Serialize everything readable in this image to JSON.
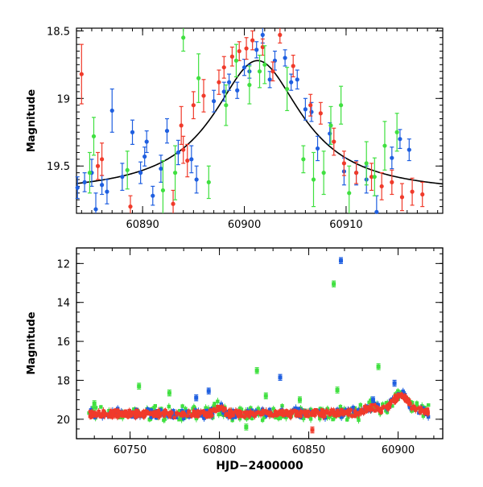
{
  "colors": {
    "blue": "#1f5fe0",
    "red": "#f03a2a",
    "green": "#40e040",
    "axis": "#000000",
    "model": "#000000"
  },
  "chart_data": [
    {
      "type": "scatter",
      "panel": "top",
      "xlabel": "",
      "ylabel": "Magnitude",
      "xlim": [
        60883.5,
        60919.5
      ],
      "ylim": [
        19.85,
        18.48
      ],
      "y_inverted": true,
      "x_ticks": [
        60890,
        60900,
        60910
      ],
      "x_tick_labels": [
        "60890",
        "60900",
        "60910"
      ],
      "y_ticks": [
        18.5,
        19,
        19.5
      ],
      "y_tick_labels": [
        "18.5",
        "19",
        "19.5"
      ],
      "model_curve": {
        "type": "lorentzian",
        "peak_time": 60901.3,
        "peak_mag": 18.72,
        "base_mag": 19.71,
        "width_days": 5.3
      },
      "series": [
        {
          "color": "blue",
          "points": [
            [
              60883.6,
              19.66,
              0.08
            ],
            [
              60884.3,
              19.62,
              0.07
            ],
            [
              60885.0,
              19.55,
              0.1
            ],
            [
              60885.4,
              19.82,
              0.12
            ],
            [
              60886.0,
              19.64,
              0.07
            ],
            [
              60886.5,
              19.69,
              0.09
            ],
            [
              60887.0,
              19.09,
              0.16
            ],
            [
              60888.0,
              19.58,
              0.1
            ],
            [
              60889.0,
              19.25,
              0.09
            ],
            [
              60889.8,
              19.55,
              0.08
            ],
            [
              60890.2,
              19.43,
              0.07
            ],
            [
              60890.4,
              19.32,
              0.08
            ],
            [
              60891.0,
              19.72,
              0.07
            ],
            [
              60891.8,
              19.52,
              0.1
            ],
            [
              60892.4,
              19.24,
              0.09
            ],
            [
              60893.5,
              19.4,
              0.09
            ],
            [
              60894.8,
              19.45,
              0.1
            ],
            [
              60895.3,
              19.6,
              0.1
            ],
            [
              60897.0,
              19.02,
              0.08
            ],
            [
              60898.0,
              18.95,
              0.07
            ],
            [
              60898.5,
              18.88,
              0.06
            ],
            [
              60899.3,
              18.94,
              0.06
            ],
            [
              60900.0,
              18.77,
              0.06
            ],
            [
              60900.5,
              18.8,
              0.05
            ],
            [
              60901.2,
              18.64,
              0.06
            ],
            [
              60901.8,
              18.53,
              0.06
            ],
            [
              60902.5,
              18.86,
              0.06
            ],
            [
              60903.0,
              18.72,
              0.07
            ],
            [
              60904.0,
              18.7,
              0.06
            ],
            [
              60904.6,
              18.88,
              0.06
            ],
            [
              60905.2,
              18.86,
              0.07
            ],
            [
              60906.0,
              19.08,
              0.08
            ],
            [
              60906.6,
              19.1,
              0.07
            ],
            [
              60907.2,
              19.37,
              0.09
            ],
            [
              60908.4,
              19.26,
              0.08
            ],
            [
              60909.8,
              19.54,
              0.1
            ],
            [
              60911.0,
              19.55,
              0.09
            ],
            [
              60912.0,
              19.6,
              0.1
            ],
            [
              60913.0,
              19.84,
              0.12
            ],
            [
              60914.5,
              19.44,
              0.08
            ],
            [
              60915.3,
              19.3,
              0.07
            ],
            [
              60916.2,
              19.38,
              0.08
            ]
          ]
        },
        {
          "color": "red",
          "points": [
            [
              60884.0,
              18.82,
              0.22
            ],
            [
              60885.6,
              19.5,
              0.1
            ],
            [
              60886.0,
              19.45,
              0.12
            ],
            [
              60888.8,
              19.8,
              0.08
            ],
            [
              60893.0,
              19.78,
              0.1
            ],
            [
              60893.8,
              19.2,
              0.14
            ],
            [
              60894.0,
              19.38,
              0.1
            ],
            [
              60894.4,
              19.46,
              0.12
            ],
            [
              60895.0,
              19.05,
              0.1
            ],
            [
              60896.0,
              18.98,
              0.12
            ],
            [
              60897.5,
              18.88,
              0.09
            ],
            [
              60898.0,
              18.77,
              0.08
            ],
            [
              60898.8,
              18.69,
              0.07
            ],
            [
              60899.5,
              18.65,
              0.07
            ],
            [
              60900.2,
              18.63,
              0.08
            ],
            [
              60900.8,
              18.57,
              0.07
            ],
            [
              60901.8,
              18.62,
              0.06
            ],
            [
              60902.8,
              18.8,
              0.07
            ],
            [
              60903.5,
              18.53,
              0.06
            ],
            [
              60904.8,
              18.76,
              0.08
            ],
            [
              60906.5,
              19.05,
              0.08
            ],
            [
              60907.5,
              19.11,
              0.08
            ],
            [
              60908.8,
              19.32,
              0.1
            ],
            [
              60909.8,
              19.48,
              0.09
            ],
            [
              60911.0,
              19.55,
              0.08
            ],
            [
              60912.5,
              19.58,
              0.1
            ],
            [
              60913.5,
              19.65,
              0.1
            ],
            [
              60914.5,
              19.62,
              0.09
            ],
            [
              60915.5,
              19.73,
              0.1
            ],
            [
              60916.5,
              19.69,
              0.1
            ],
            [
              60917.5,
              19.71,
              0.09
            ]
          ]
        },
        {
          "color": "green",
          "points": [
            [
              60884.8,
              19.55,
              0.15
            ],
            [
              60885.2,
              19.28,
              0.14
            ],
            [
              60888.5,
              19.53,
              0.14
            ],
            [
              60892.0,
              19.68,
              0.22
            ],
            [
              60893.2,
              19.55,
              0.2
            ],
            [
              60894.0,
              18.55,
              0.1
            ],
            [
              60895.5,
              18.85,
              0.18
            ],
            [
              60896.5,
              19.62,
              0.12
            ],
            [
              60898.2,
              19.05,
              0.15
            ],
            [
              60899.2,
              18.72,
              0.12
            ],
            [
              60900.5,
              18.9,
              0.14
            ],
            [
              60901.5,
              18.8,
              0.12
            ],
            [
              60902.0,
              18.75,
              0.14
            ],
            [
              60904.2,
              18.93,
              0.16
            ],
            [
              60905.8,
              19.45,
              0.1
            ],
            [
              60906.8,
              19.6,
              0.2
            ],
            [
              60907.8,
              19.55,
              0.16
            ],
            [
              60908.5,
              19.2,
              0.14
            ],
            [
              60909.5,
              19.05,
              0.14
            ],
            [
              60910.3,
              19.7,
              0.2
            ],
            [
              60912.0,
              19.48,
              0.16
            ],
            [
              60912.8,
              19.58,
              0.14
            ],
            [
              60913.8,
              19.35,
              0.18
            ],
            [
              60915.0,
              19.25,
              0.14
            ]
          ]
        }
      ]
    },
    {
      "type": "scatter",
      "panel": "bottom",
      "xlabel": "HJD−2400000",
      "ylabel": "Magnitude",
      "xlim": [
        60720,
        60925
      ],
      "ylim": [
        21.0,
        11.2
      ],
      "y_inverted": true,
      "x_ticks": [
        60750,
        60800,
        60850,
        60900
      ],
      "x_tick_labels": [
        "60750",
        "60800",
        "60850",
        "60900"
      ],
      "y_ticks": [
        12,
        14,
        16,
        18,
        20
      ],
      "y_tick_labels": [
        "12",
        "14",
        "16",
        "18",
        "20"
      ],
      "baseline_mag": 19.72,
      "outliers": [
        {
          "color": "blue",
          "x": 60868,
          "y": 11.85
        },
        {
          "color": "green",
          "x": 60864,
          "y": 13.05
        },
        {
          "color": "green",
          "x": 60821,
          "y": 17.5
        },
        {
          "color": "blue",
          "x": 60834,
          "y": 17.85
        },
        {
          "color": "green",
          "x": 60755,
          "y": 18.3
        },
        {
          "color": "green",
          "x": 60889,
          "y": 17.3
        },
        {
          "color": "green",
          "x": 60772,
          "y": 18.65
        },
        {
          "color": "blue",
          "x": 60794,
          "y": 18.55
        },
        {
          "color": "green",
          "x": 60866,
          "y": 18.5
        },
        {
          "color": "blue",
          "x": 60898,
          "y": 18.15
        },
        {
          "color": "green",
          "x": 60730,
          "y": 19.2
        },
        {
          "color": "green",
          "x": 60815,
          "y": 20.4
        },
        {
          "color": "red",
          "x": 60852,
          "y": 20.55
        },
        {
          "color": "green",
          "x": 60845,
          "y": 19.0
        },
        {
          "color": "blue",
          "x": 60787,
          "y": 18.9
        },
        {
          "color": "green",
          "x": 60826,
          "y": 18.8
        },
        {
          "color": "blue",
          "x": 60886,
          "y": 19.0
        }
      ]
    }
  ]
}
